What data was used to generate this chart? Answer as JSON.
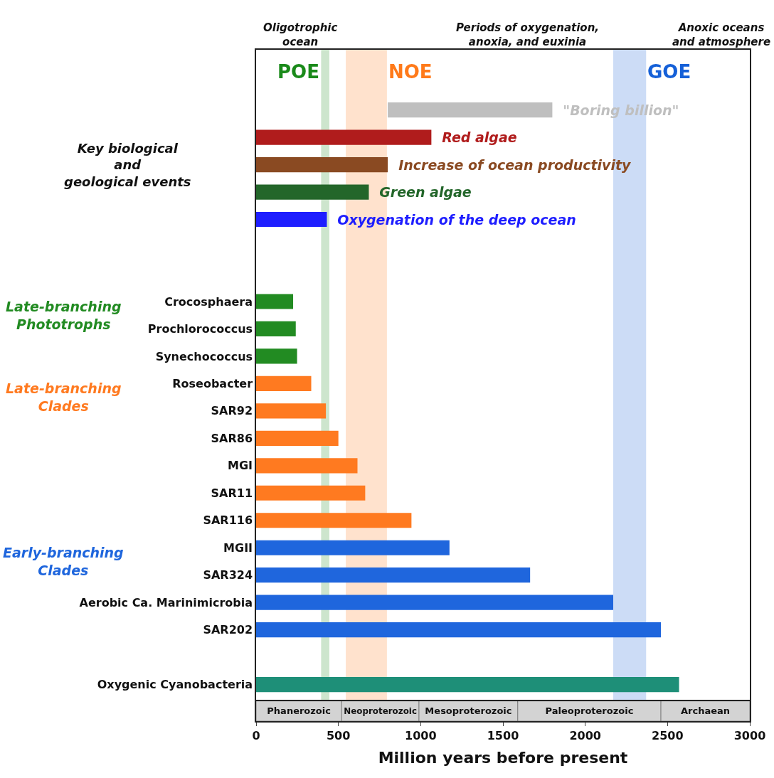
{
  "chart_data": [
    {
      "type": "bar",
      "orientation": "horizontal",
      "tick_labels": "y",
      "categories": [
        null,
        null,
        null,
        null,
        null,
        null,
        null,
        "Crocosphaera",
        "Prochlorococcus",
        "Synechococcus",
        "Roseobacter",
        "SAR92",
        "SAR86",
        "MGI",
        "SAR11",
        "SAR116",
        "MGII",
        "SAR324",
        "Aerobic Ca. Marinimicrobia",
        "SAR202",
        null,
        "Oxygenic Cyanobacteria"
      ],
      "xlim": [
        0,
        3000
      ],
      "series": [
        {
          "name": "\"Boring billion\"",
          "color": "#bfbfbf",
          "base": [
            800,
            null,
            null,
            null,
            null,
            null,
            null,
            null,
            null,
            null,
            null,
            null,
            null,
            null,
            null,
            null,
            null,
            null,
            null,
            null,
            null,
            null
          ],
          "values": [
            1000,
            null,
            null,
            null,
            null,
            null,
            null,
            null,
            null,
            null,
            null,
            null,
            null,
            null,
            null,
            null,
            null,
            null,
            null,
            null,
            null,
            null
          ]
        },
        {
          "name": "Red algae",
          "color": "#b01c1c",
          "values": [
            null,
            1065,
            null,
            null,
            null,
            null,
            null,
            null,
            null,
            null,
            null,
            null,
            null,
            null,
            null,
            null,
            null,
            null,
            null,
            null,
            null,
            null
          ]
        },
        {
          "name": "Increase of ocean productivity",
          "color": "#8a4a22",
          "values": [
            null,
            null,
            800,
            null,
            null,
            null,
            null,
            null,
            null,
            null,
            null,
            null,
            null,
            null,
            null,
            null,
            null,
            null,
            null,
            null,
            null,
            null
          ]
        },
        {
          "name": "Green algae",
          "color": "#23662a",
          "values": [
            null,
            null,
            null,
            685,
            null,
            null,
            null,
            null,
            null,
            null,
            null,
            null,
            null,
            null,
            null,
            null,
            null,
            null,
            null,
            null,
            null,
            null
          ]
        },
        {
          "name": "Oxygenation of the deep ocean",
          "color": "#1e1eff",
          "values": [
            null,
            null,
            null,
            null,
            430,
            null,
            null,
            null,
            null,
            null,
            null,
            null,
            null,
            null,
            null,
            null,
            null,
            null,
            null,
            null,
            null,
            null
          ]
        },
        {
          "color": "#228b22",
          "values": [
            null,
            null,
            null,
            null,
            null,
            null,
            null,
            225,
            241,
            249,
            null,
            null,
            null,
            null,
            null,
            null,
            null,
            null,
            null,
            null,
            null,
            null
          ]
        },
        {
          "color": "#ff7a20",
          "values": [
            null,
            null,
            null,
            null,
            null,
            null,
            null,
            null,
            null,
            null,
            335,
            424,
            500,
            616,
            663,
            944,
            null,
            null,
            null,
            null,
            null,
            null
          ]
        },
        {
          "color": "#1f66dd",
          "values": [
            null,
            null,
            null,
            null,
            null,
            null,
            null,
            null,
            null,
            null,
            null,
            null,
            null,
            null,
            null,
            null,
            1175,
            1665,
            2170,
            2460,
            null,
            null
          ]
        },
        {
          "color": "#1e8f78",
          "values": [
            null,
            null,
            null,
            null,
            null,
            null,
            null,
            null,
            null,
            null,
            null,
            null,
            null,
            null,
            null,
            null,
            null,
            null,
            null,
            null,
            null,
            2570
          ]
        }
      ],
      "bands": [
        {
          "axis": "x",
          "from": 395,
          "to": 445,
          "label": "POE",
          "color": "#1a8a1a"
        },
        {
          "axis": "x",
          "from": 545,
          "to": 795,
          "label": "NOE",
          "color": "#ff7a1a"
        },
        {
          "axis": "x",
          "from": 2170,
          "to": 2370,
          "label": "GOE",
          "color": "#1560d8"
        }
      ],
      "annotations": [
        "Key biological\nand\ngeological events",
        "Oligotrophic\nocean",
        "Periods of oxygenation,\nanoxia, and euxinia",
        "Anoxic oceans\nand atmosphere",
        "Late-branching\nPhototrophs",
        "Late-branching\nClades",
        "Early-branching\nClades"
      ]
    },
    {
      "type": "bar",
      "orientation": "horizontal",
      "stacked": true,
      "tick_labels": "x",
      "categories": [
        null
      ],
      "xlim": [
        0,
        3000
      ],
      "xticks": [
        0,
        500,
        1000,
        1500,
        2000,
        2500,
        3000
      ],
      "xlabel": "Million years before present",
      "series": [
        {
          "color": "#d3d3d3",
          "values": [
            520
          ],
          "value_labels": [
            "Phanerozoic"
          ]
        },
        {
          "color": "#d3d3d3",
          "values": [
            470
          ],
          "value_labels": [
            "Neoproterozoic"
          ]
        },
        {
          "color": "#d3d3d3",
          "values": [
            600
          ],
          "value_labels": [
            "Mesoproterozoic"
          ]
        },
        {
          "color": "#d3d3d3",
          "values": [
            870
          ],
          "value_labels": [
            "Paleoproterozoic"
          ]
        },
        {
          "color": "#d3d3d3",
          "values": [
            540
          ],
          "value_labels": [
            "Archaean"
          ]
        }
      ]
    }
  ]
}
